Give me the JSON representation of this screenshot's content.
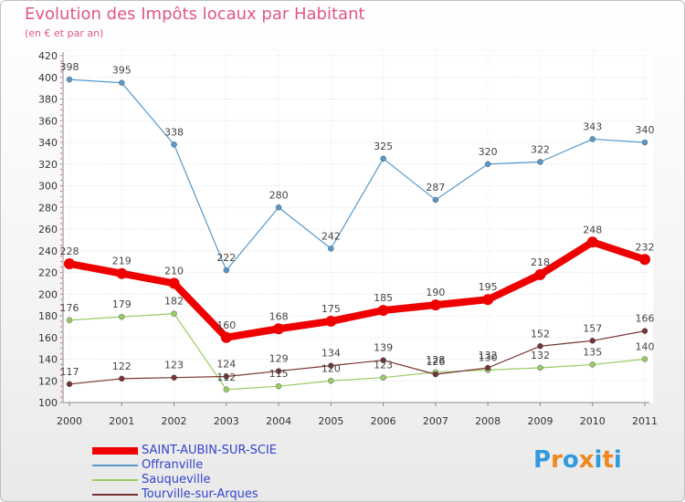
{
  "title": "Evolution des Impôts locaux par Habitant",
  "subtitle": "(en € et par an)",
  "chart_data": {
    "type": "line",
    "title": "Evolution des Impôts locaux par Habitant",
    "subtitle": "(en € et par an)",
    "x": [
      "2000",
      "2001",
      "2002",
      "2003",
      "2004",
      "2005",
      "2006",
      "2007",
      "2008",
      "2009",
      "2010",
      "2011"
    ],
    "ylim": [
      100,
      420
    ],
    "yticks": [
      100,
      120,
      140,
      160,
      180,
      200,
      220,
      240,
      260,
      280,
      300,
      320,
      340,
      360,
      380,
      400,
      420
    ],
    "grid": true,
    "legend_position": "bottom-left",
    "series": [
      {
        "name": "SAINT-AUBIN-SUR-SCIE",
        "color": "#ee0000",
        "emphasis": true,
        "values": [
          228,
          219,
          210,
          160,
          168,
          175,
          185,
          190,
          195,
          218,
          248,
          232
        ]
      },
      {
        "name": "Offranville",
        "color": "#5599cc",
        "emphasis": false,
        "values": [
          398,
          395,
          338,
          222,
          280,
          242,
          325,
          287,
          320,
          322,
          343,
          340
        ]
      },
      {
        "name": "Sauqueville",
        "color": "#99cc66",
        "emphasis": false,
        "values": [
          176,
          179,
          182,
          112,
          115,
          120,
          123,
          128,
          130,
          132,
          135,
          140
        ]
      },
      {
        "name": "Tourville-sur-Arques",
        "color": "#773333",
        "emphasis": false,
        "values": [
          117,
          122,
          123,
          124,
          129,
          134,
          139,
          126,
          132,
          152,
          157,
          166
        ]
      }
    ]
  },
  "logo": {
    "letters": [
      "P",
      "r",
      "o",
      "x",
      "i",
      "t",
      "i"
    ],
    "colors": [
      "#3399dd",
      "#ee8822",
      "#3399dd",
      "#ee8822",
      "#3399dd",
      "#ee8822",
      "#3399dd"
    ]
  }
}
